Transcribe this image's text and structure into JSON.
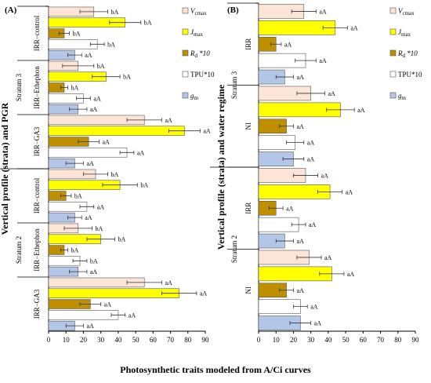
{
  "figure": {
    "xlabel": "Photosynthetic traits modeled from A/Ci curves"
  },
  "colors": {
    "Vcmax": "#fce4d6",
    "Jmax": "#ffff00",
    "Rd": "#bf8f00",
    "TPU": "#ffffff",
    "gm": "#b4c6e7"
  },
  "chart_data": [
    {
      "panel": "(A)",
      "type": "bar",
      "orientation": "horizontal",
      "ylabel": "Vertical profile (strata) and PGR",
      "xlim": [
        0,
        90
      ],
      "xticks": [
        0,
        10,
        20,
        30,
        40,
        50,
        60,
        70,
        80,
        90
      ],
      "grid": false,
      "legend_position": "right",
      "legend": [
        {
          "key": "Vcmax",
          "label": "Vcmax"
        },
        {
          "key": "Jmax",
          "label": "Jmax"
        },
        {
          "key": "Rd",
          "label": "Rd *10"
        },
        {
          "key": "TPU",
          "label": "TPU*10"
        },
        {
          "key": "gm",
          "label": "gm"
        }
      ],
      "strata": [
        {
          "label": "Stratum 3",
          "groups": [
            {
              "label": "IRR−control",
              "bars": [
                {
                  "key": "Vcmax",
                  "value": 26,
                  "err": 8,
                  "letter": "bA"
                },
                {
                  "key": "Jmax",
                  "value": 44,
                  "err": 9,
                  "letter": "bA"
                },
                {
                  "key": "Rd",
                  "value": 9,
                  "err": 3,
                  "letter": "bA"
                },
                {
                  "key": "TPU",
                  "value": 28,
                  "err": 4,
                  "letter": "bA"
                },
                {
                  "key": "gm",
                  "value": 15,
                  "err": 4,
                  "letter": "aA"
                }
              ]
            },
            {
              "label": "IRR−Ethephon",
              "bars": [
                {
                  "key": "Vcmax",
                  "value": 17,
                  "err": 9,
                  "letter": "bA"
                },
                {
                  "key": "Jmax",
                  "value": 33,
                  "err": 8,
                  "letter": "bA"
                },
                {
                  "key": "Rd",
                  "value": 9,
                  "err": 2,
                  "letter": "bA"
                },
                {
                  "key": "TPU",
                  "value": 20,
                  "err": 4,
                  "letter": "aA"
                },
                {
                  "key": "gm",
                  "value": 17,
                  "err": 5,
                  "letter": "aA"
                }
              ]
            },
            {
              "label": "IRR−GA3",
              "bars": [
                {
                  "key": "Vcmax",
                  "value": 55,
                  "err": 10,
                  "letter": "aA"
                },
                {
                  "key": "Jmax",
                  "value": 78,
                  "err": 9,
                  "letter": "aA"
                },
                {
                  "key": "Rd",
                  "value": 23,
                  "err": 6,
                  "letter": "aA"
                },
                {
                  "key": "TPU",
                  "value": 45,
                  "err": 4,
                  "letter": "aA"
                },
                {
                  "key": "gm",
                  "value": 15,
                  "err": 5,
                  "letter": "aA"
                }
              ]
            }
          ]
        },
        {
          "label": "Stratum 2",
          "groups": [
            {
              "label": "IRR−control",
              "bars": [
                {
                  "key": "Vcmax",
                  "value": 27,
                  "err": 7,
                  "letter": "bA"
                },
                {
                  "key": "Jmax",
                  "value": 41,
                  "err": 10,
                  "letter": "bA"
                },
                {
                  "key": "Rd",
                  "value": 10,
                  "err": 3,
                  "letter": "bA"
                },
                {
                  "key": "TPU",
                  "value": 22,
                  "err": 4,
                  "letter": "aA"
                },
                {
                  "key": "gm",
                  "value": 15,
                  "err": 4,
                  "letter": "aA"
                }
              ]
            },
            {
              "label": "IRR−Ethephon",
              "bars": [
                {
                  "key": "Vcmax",
                  "value": 17,
                  "err": 8,
                  "letter": "bA"
                },
                {
                  "key": "Jmax",
                  "value": 30,
                  "err": 8,
                  "letter": "bA"
                },
                {
                  "key": "Rd",
                  "value": 9,
                  "err": 2,
                  "letter": "bA"
                },
                {
                  "key": "TPU",
                  "value": 18,
                  "err": 4,
                  "letter": "bA"
                },
                {
                  "key": "gm",
                  "value": 17,
                  "err": 5,
                  "letter": "aA"
                }
              ]
            },
            {
              "label": "IRR−GA3",
              "bars": [
                {
                  "key": "Vcmax",
                  "value": 55,
                  "err": 10,
                  "letter": "aA"
                },
                {
                  "key": "Jmax",
                  "value": 75,
                  "err": 10,
                  "letter": "aA"
                },
                {
                  "key": "Rd",
                  "value": 24,
                  "err": 6,
                  "letter": "aA"
                },
                {
                  "key": "TPU",
                  "value": 40,
                  "err": 4,
                  "letter": "aA"
                },
                {
                  "key": "gm",
                  "value": 15,
                  "err": 5,
                  "letter": "aA"
                }
              ]
            }
          ]
        }
      ]
    },
    {
      "panel": "(B)",
      "type": "bar",
      "orientation": "horizontal",
      "ylabel": "Vertical profile (strata) and water regime",
      "xlim": [
        0,
        90
      ],
      "xticks": [
        0,
        10,
        20,
        30,
        40,
        50,
        60,
        70,
        80,
        90
      ],
      "grid": false,
      "legend_position": "right",
      "legend": [
        {
          "key": "Vcmax",
          "label": "Vcmax"
        },
        {
          "key": "Jmax",
          "label": "Jmax"
        },
        {
          "key": "Rd",
          "label": "Rd *10"
        },
        {
          "key": "TPU",
          "label": "TPU*10"
        },
        {
          "key": "gm",
          "label": "gm"
        }
      ],
      "strata": [
        {
          "label": "Stratum 3",
          "groups": [
            {
              "label": "IRR",
              "bars": [
                {
                  "key": "Vcmax",
                  "value": 26,
                  "err": 7,
                  "letter": "aA"
                },
                {
                  "key": "Jmax",
                  "value": 44,
                  "err": 7,
                  "letter": "aA"
                },
                {
                  "key": "Rd",
                  "value": 10,
                  "err": 3,
                  "letter": "aA"
                },
                {
                  "key": "TPU",
                  "value": 27,
                  "err": 6,
                  "letter": "aA"
                },
                {
                  "key": "gm",
                  "value": 15,
                  "err": 5,
                  "letter": "aA"
                }
              ]
            },
            {
              "label": "NI",
              "bars": [
                {
                  "key": "Vcmax",
                  "value": 30,
                  "err": 8,
                  "letter": "aA"
                },
                {
                  "key": "Jmax",
                  "value": 47,
                  "err": 8,
                  "letter": "aA"
                },
                {
                  "key": "Rd",
                  "value": 16,
                  "err": 4,
                  "letter": "aA"
                },
                {
                  "key": "TPU",
                  "value": 21,
                  "err": 5,
                  "letter": "aA"
                },
                {
                  "key": "gm",
                  "value": 20,
                  "err": 6,
                  "letter": "aA"
                }
              ]
            }
          ]
        },
        {
          "label": "Stratum 2",
          "groups": [
            {
              "label": "IRR",
              "bars": [
                {
                  "key": "Vcmax",
                  "value": 27,
                  "err": 7,
                  "letter": "aA"
                },
                {
                  "key": "Jmax",
                  "value": 41,
                  "err": 7,
                  "letter": "aA"
                },
                {
                  "key": "Rd",
                  "value": 10,
                  "err": 4,
                  "letter": "aA"
                },
                {
                  "key": "TPU",
                  "value": 23,
                  "err": 4,
                  "letter": "aA"
                },
                {
                  "key": "gm",
                  "value": 15,
                  "err": 5,
                  "letter": "aA"
                }
              ]
            },
            {
              "label": "NI",
              "bars": [
                {
                  "key": "Vcmax",
                  "value": 29,
                  "err": 7,
                  "letter": "aA"
                },
                {
                  "key": "Jmax",
                  "value": 42,
                  "err": 7,
                  "letter": "aA"
                },
                {
                  "key": "Rd",
                  "value": 16,
                  "err": 4,
                  "letter": "aA"
                },
                {
                  "key": "TPU",
                  "value": 24,
                  "err": 4,
                  "letter": "aA"
                },
                {
                  "key": "gm",
                  "value": 24,
                  "err": 6,
                  "letter": "aA"
                }
              ]
            }
          ]
        }
      ]
    }
  ]
}
